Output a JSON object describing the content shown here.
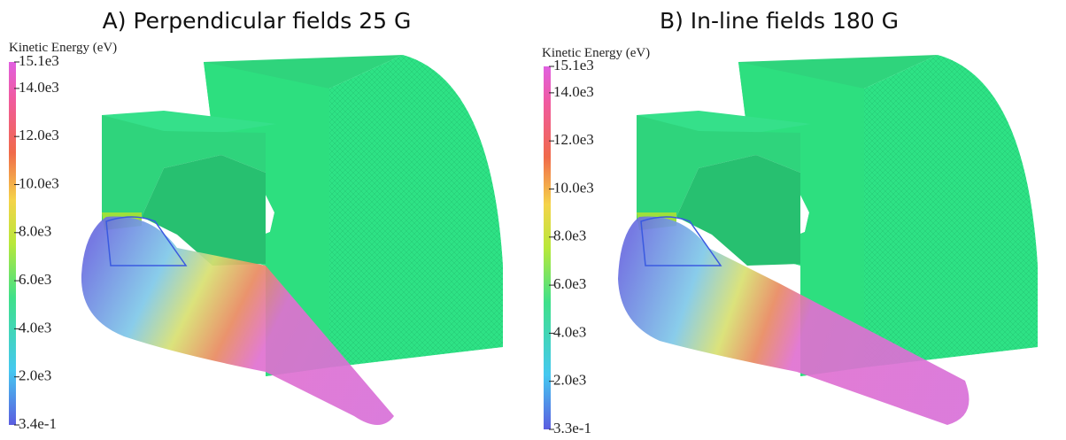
{
  "panels": [
    {
      "title": "A) Perpendicular fields 25 G",
      "colorbar": {
        "title": "Kinetic Energy (eV)",
        "ticks": [
          "15.1e3",
          "14.0e3",
          "12.0e3",
          "10.0e3",
          "8.0e3",
          "6.0e3",
          "4.0e3",
          "2.0e3",
          "3.4e-1"
        ]
      }
    },
    {
      "title": "B) In-line fields 180 G",
      "colorbar": {
        "title": "Kinetic Energy (eV)",
        "ticks": [
          "15.1e3",
          "14.0e3",
          "12.0e3",
          "10.0e3",
          "8.0e3",
          "6.0e3",
          "4.0e3",
          "2.0e3",
          "3.3e-1"
        ]
      }
    }
  ]
}
